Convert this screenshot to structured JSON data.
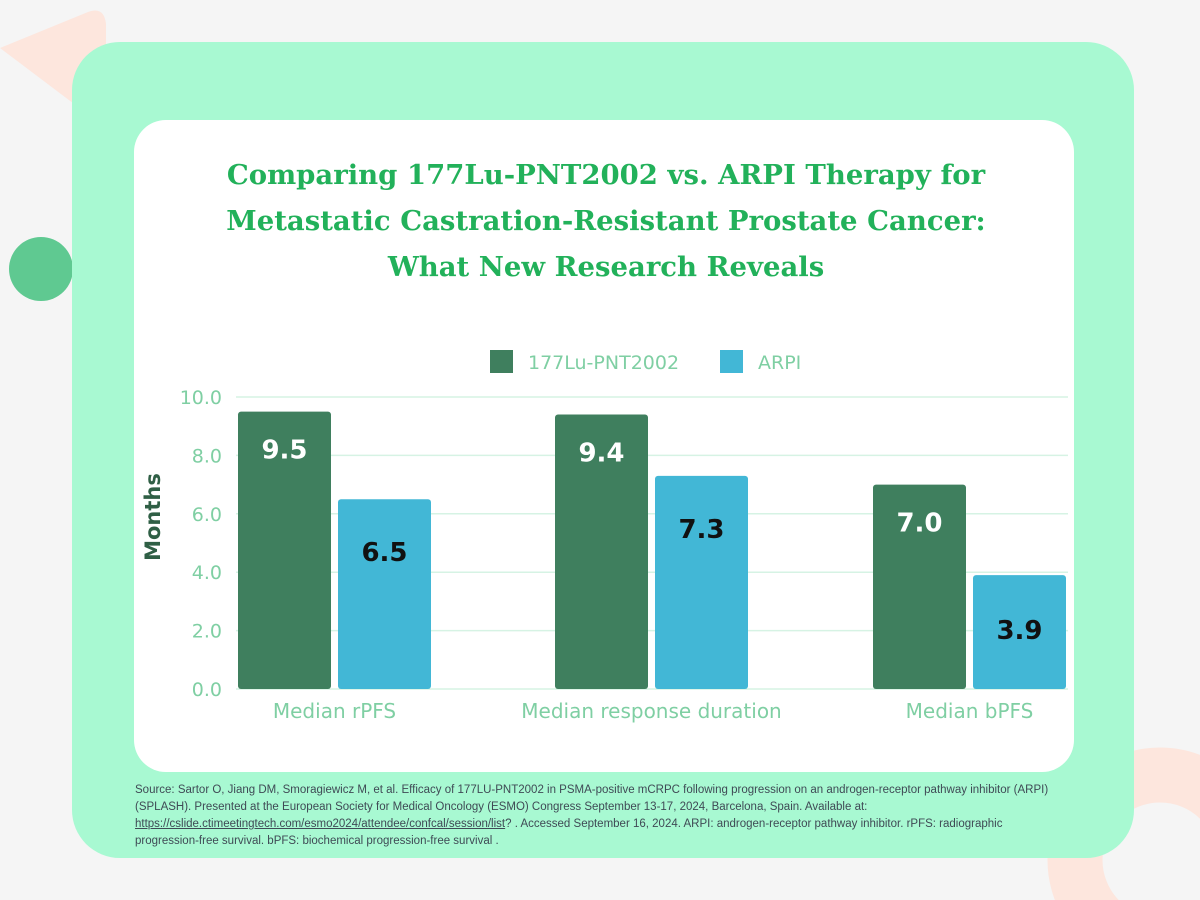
{
  "title_lines": [
    "Comparing 177Lu-PNT2002 vs. ARPI Therapy for",
    "Metastatic Castration-Resistant Prostate Cancer:",
    "What New Research Reveals"
  ],
  "colors": {
    "title": "#22b15a",
    "lu_bar": "#3f7f5e",
    "arpi_bar": "#42b7d6",
    "axis_text": "#7fcfa3",
    "gridline": "#d6f3e4",
    "ylabel": "#2f5f45",
    "frame": "#a8f9d2",
    "deco_circle": "#5fc991",
    "deco_peach": "#fde6dd"
  },
  "chart_data": {
    "type": "bar",
    "title": "Comparing 177Lu-PNT2002 vs. ARPI Therapy for Metastatic Castration-Resistant Prostate Cancer: What New Research Reveals",
    "categories": [
      "Median rPFS",
      "Median response duration",
      "Median bPFS"
    ],
    "series": [
      {
        "name": "177Lu-PNT2002",
        "values": [
          9.5,
          9.4,
          7.0
        ],
        "labels": [
          "9.5",
          "9.4",
          "7.0"
        ]
      },
      {
        "name": "ARPI",
        "values": [
          6.5,
          7.3,
          3.9
        ],
        "labels": [
          "6.5",
          "7.3",
          "3.9"
        ]
      }
    ],
    "xlabel": "",
    "ylabel": "Months",
    "ylim": [
      0,
      10
    ],
    "yticks": [
      "0.0",
      "2.0",
      "4.0",
      "6.0",
      "8.0",
      "10.0"
    ],
    "legend": "top-center",
    "grid": true
  },
  "source": {
    "prefix": "Source: Sartor O, Jiang DM, Smoragiewicz M, et al. Efficacy of 177LU-PNT2002 in PSMA-positive mCRPC following progression on an androgen-receptor pathway inhibitor (ARPI) (SPLASH). Presented at the European Society for Medical Oncology (ESMO) Congress September 13-17, 2024, Barcelona, Spain. Available at: ",
    "link": "https://cslide.ctimeetingtech.com/esmo2024/attendee/confcal/session/list",
    "suffix": "? . Accessed September 16, 2024.  ARPI: androgen-receptor pathway inhibitor. rPFS: radiographic progression-free survival.  bPFS:  biochemical progression-free survival ."
  }
}
